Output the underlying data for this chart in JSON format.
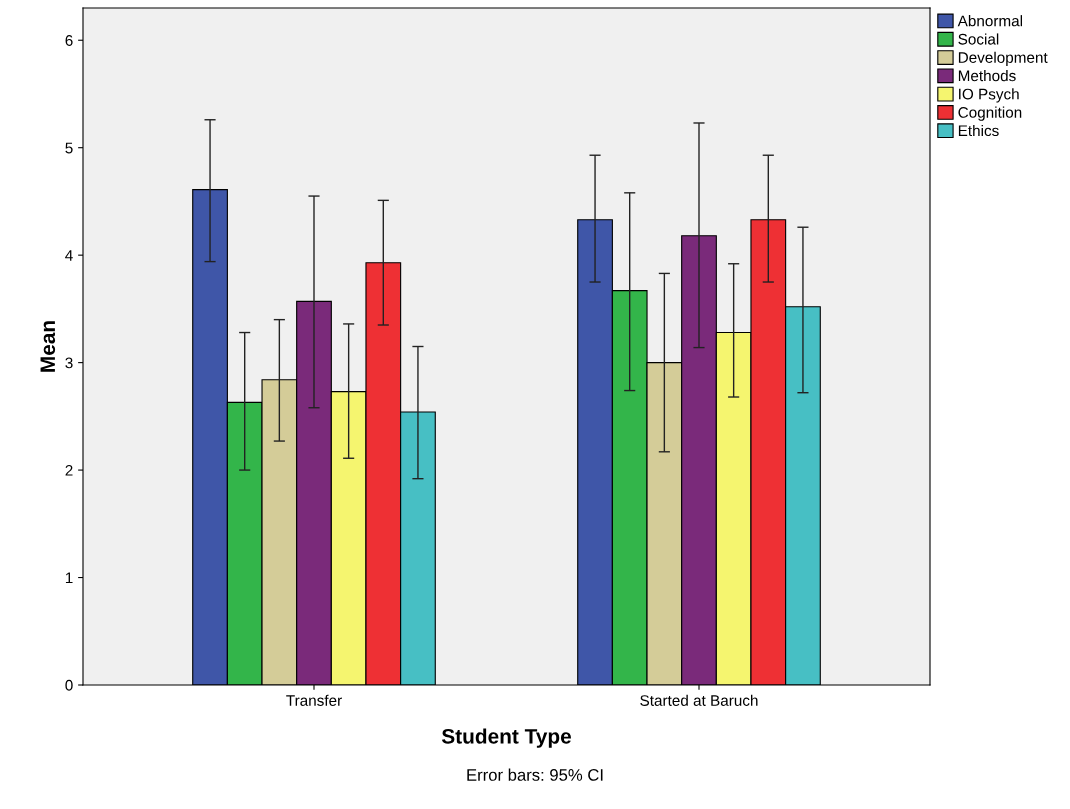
{
  "chart_data": {
    "type": "bar",
    "xlabel": "Student Type",
    "ylabel": "Mean",
    "categories": [
      "Transfer",
      "Started at Baruch"
    ],
    "series": [
      {
        "name": "Abnormal",
        "color": "#3f56a8",
        "values": [
          4.61,
          4.33
        ],
        "errors": [
          [
            3.94,
            5.26
          ],
          [
            3.75,
            4.93
          ]
        ]
      },
      {
        "name": "Social",
        "color": "#33b54a",
        "values": [
          2.63,
          3.67
        ],
        "errors": [
          [
            2.0,
            3.28
          ],
          [
            2.74,
            4.58
          ]
        ]
      },
      {
        "name": "Development",
        "color": "#d4cc98",
        "values": [
          2.84,
          3.0
        ],
        "errors": [
          [
            2.27,
            3.4
          ],
          [
            2.17,
            3.83
          ]
        ]
      },
      {
        "name": "Methods",
        "color": "#7a2a7a",
        "values": [
          3.57,
          4.18
        ],
        "errors": [
          [
            2.58,
            4.55
          ],
          [
            3.14,
            5.23
          ]
        ]
      },
      {
        "name": "IO Psych",
        "color": "#f5f56f",
        "values": [
          2.73,
          3.28
        ],
        "errors": [
          [
            2.11,
            3.36
          ],
          [
            2.68,
            3.92
          ]
        ]
      },
      {
        "name": "Cognition",
        "color": "#ee3034",
        "values": [
          3.93,
          4.33
        ],
        "errors": [
          [
            3.35,
            4.51
          ],
          [
            3.75,
            4.93
          ]
        ]
      },
      {
        "name": "Ethics",
        "color": "#47bfc4",
        "values": [
          2.54,
          3.52
        ],
        "errors": [
          [
            1.92,
            3.15
          ],
          [
            2.72,
            4.26
          ]
        ]
      }
    ],
    "ylim": [
      0,
      6.3
    ],
    "yticks": [
      0,
      1,
      2,
      3,
      4,
      5,
      6
    ],
    "grid": false,
    "legend": "top right",
    "annotations": [
      "Error bars: 95% CI"
    ]
  }
}
